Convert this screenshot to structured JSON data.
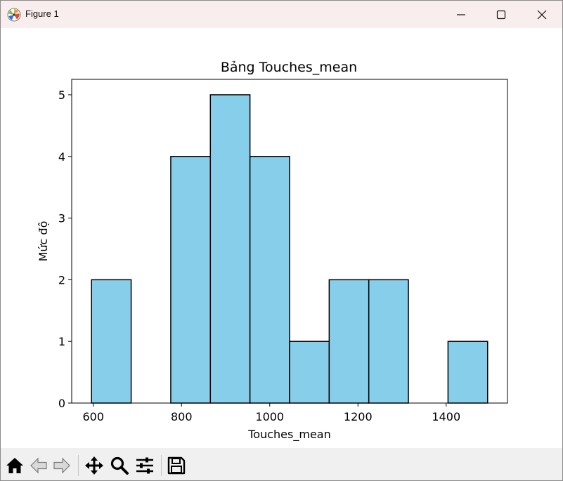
{
  "window": {
    "title": "Figure 1",
    "icon": "matplotlib-logo-icon",
    "controls": [
      "minimize-icon",
      "maximize-icon",
      "close-icon"
    ]
  },
  "chart_data": {
    "type": "bar",
    "title": "Bảng Touches_mean",
    "xlabel": "Touches_mean",
    "ylabel": "Mức độ",
    "bin_edges": [
      596.0,
      685.8,
      775.6,
      865.4,
      955.2,
      1045.0,
      1134.8,
      1224.6,
      1314.4,
      1404.2,
      1494.0
    ],
    "values": [
      2,
      0,
      4,
      5,
      4,
      1,
      2,
      2,
      0,
      1
    ],
    "xlim": [
      551,
      1539
    ],
    "ylim": [
      0,
      5.25
    ],
    "xticks": [
      600,
      800,
      1000,
      1200,
      1400
    ],
    "yticks": [
      0,
      1,
      2,
      3,
      4,
      5
    ],
    "bar_color": "#87ceeb",
    "edge_color": "#000000",
    "grid": false
  },
  "toolbar": {
    "tools": [
      {
        "name": "home-icon",
        "label": "Home"
      },
      {
        "name": "back-icon",
        "label": "Back"
      },
      {
        "name": "forward-icon",
        "label": "Forward"
      },
      {
        "name": "pan-icon",
        "label": "Pan"
      },
      {
        "name": "zoom-icon",
        "label": "Zoom"
      },
      {
        "name": "configure-subplots-icon",
        "label": "Configure subplots"
      },
      {
        "name": "save-icon",
        "label": "Save"
      }
    ]
  }
}
